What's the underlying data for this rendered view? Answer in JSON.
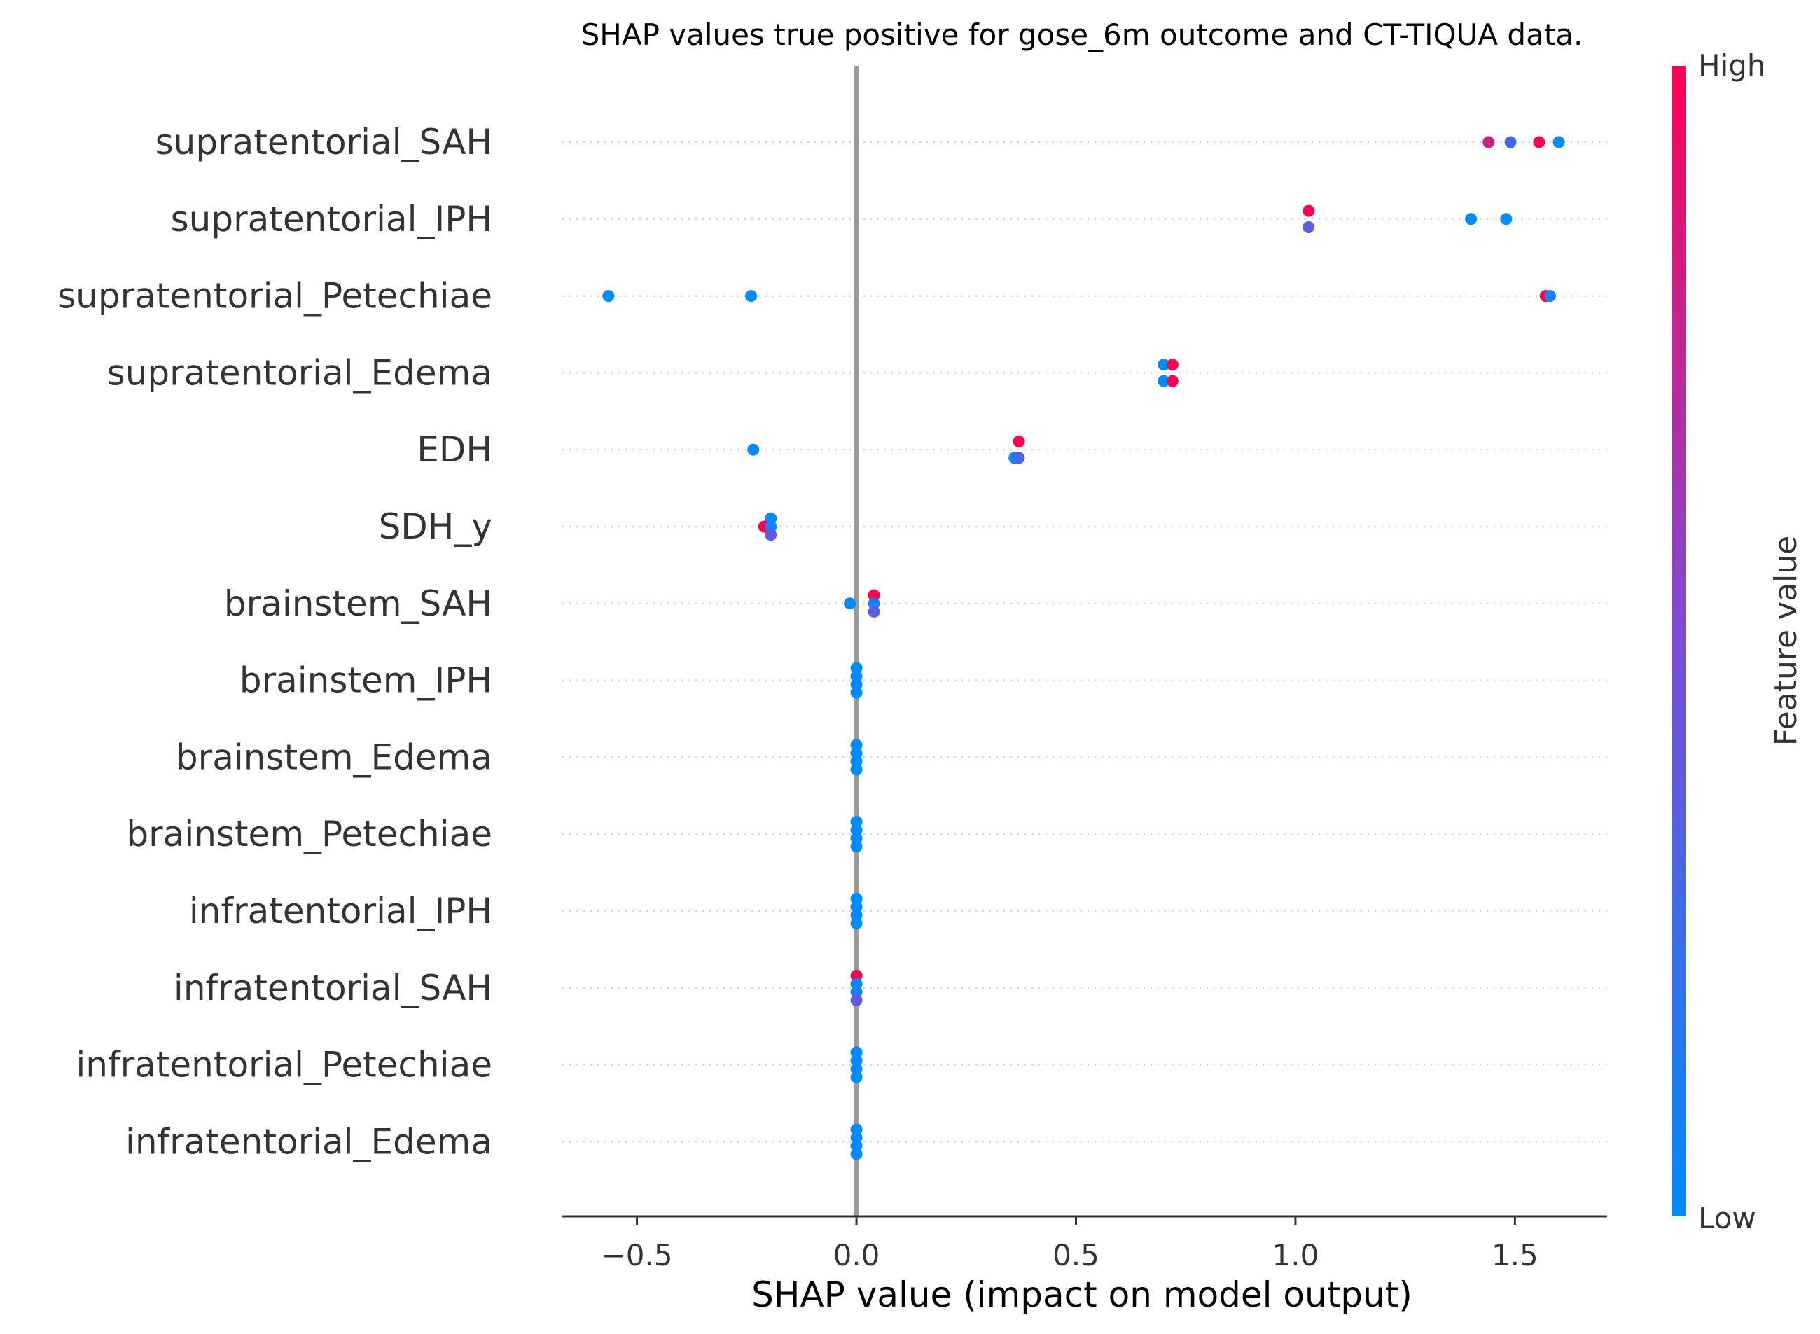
{
  "chart_data": {
    "type": "scatter",
    "title": "SHAP values true positive for gose_6m outcome and CT-TIQUA data.",
    "xlabel": "SHAP value (impact on model output)",
    "ylabel": "",
    "xlim": [
      -0.67,
      1.71
    ],
    "xticks": [
      -0.5,
      0.0,
      0.5,
      1.0,
      1.5
    ],
    "xtick_labels": [
      "−0.5",
      "0.0",
      "0.5",
      "1.0",
      "1.5"
    ],
    "grid": "dotted horizontal row lines",
    "colorbar": {
      "label": "Feature value",
      "high_label": "High",
      "low_label": "Low",
      "placement": "right"
    },
    "colors": {
      "low": "#008bfb",
      "high": "#ff0052",
      "zero_line": "#999999",
      "axis": "#333333",
      "grid": "#cccccc",
      "text": "#333333"
    },
    "features": [
      "supratentorial_SAH",
      "supratentorial_IPH",
      "supratentorial_Petechiae",
      "supratentorial_Edema",
      "EDH",
      "SDH_y",
      "brainstem_SAH",
      "brainstem_IPH",
      "brainstem_Edema",
      "brainstem_Petechiae",
      "infratentorial_IPH",
      "infratentorial_SAH",
      "infratentorial_Petechiae",
      "infratentorial_Edema"
    ],
    "points": [
      [
        [
          1.44,
          0.0,
          0.8
        ],
        [
          1.49,
          0.0,
          0.25
        ],
        [
          1.555,
          0.0,
          1.0
        ],
        [
          1.6,
          0.0,
          0.0
        ]
      ],
      [
        [
          1.03,
          0.18,
          1.0
        ],
        [
          1.03,
          -0.18,
          0.35
        ],
        [
          1.4,
          0.0,
          0.0
        ],
        [
          1.48,
          0.0,
          0.0
        ]
      ],
      [
        [
          -0.565,
          0.0,
          0.0
        ],
        [
          -0.24,
          0.0,
          0.0
        ],
        [
          1.57,
          0.0,
          1.0
        ],
        [
          1.58,
          0.0,
          0.1
        ]
      ],
      [
        [
          0.7,
          0.18,
          0.0
        ],
        [
          0.72,
          0.18,
          1.0
        ],
        [
          0.7,
          -0.18,
          0.0
        ],
        [
          0.72,
          -0.18,
          1.0
        ]
      ],
      [
        [
          -0.235,
          0.0,
          0.0
        ],
        [
          0.37,
          0.18,
          1.0
        ],
        [
          0.36,
          -0.18,
          0.0
        ],
        [
          0.37,
          -0.18,
          0.3
        ]
      ],
      [
        [
          -0.195,
          0.18,
          0.0
        ],
        [
          -0.21,
          0.0,
          1.0
        ],
        [
          -0.195,
          0.0,
          0.05
        ],
        [
          -0.195,
          -0.18,
          0.4
        ]
      ],
      [
        [
          -0.015,
          0.0,
          0.0
        ],
        [
          0.04,
          0.18,
          1.0
        ],
        [
          0.04,
          0.0,
          0.1
        ],
        [
          0.04,
          -0.18,
          0.35
        ]
      ],
      [
        [
          0.0,
          0.27,
          0.0
        ],
        [
          0.0,
          0.09,
          0.0
        ],
        [
          0.0,
          -0.09,
          0.0
        ],
        [
          0.0,
          -0.27,
          0.0
        ]
      ],
      [
        [
          0.0,
          0.27,
          0.0
        ],
        [
          0.0,
          0.09,
          0.0
        ],
        [
          0.0,
          -0.09,
          0.0
        ],
        [
          0.0,
          -0.27,
          0.0
        ]
      ],
      [
        [
          0.0,
          0.27,
          0.0
        ],
        [
          0.0,
          0.09,
          0.0
        ],
        [
          0.0,
          -0.09,
          0.0
        ],
        [
          0.0,
          -0.27,
          0.0
        ]
      ],
      [
        [
          0.0,
          0.27,
          0.0
        ],
        [
          0.0,
          0.09,
          0.0
        ],
        [
          0.0,
          -0.09,
          0.0
        ],
        [
          0.0,
          -0.27,
          0.0
        ]
      ],
      [
        [
          0.0,
          0.27,
          1.0
        ],
        [
          0.0,
          0.09,
          0.05
        ],
        [
          0.0,
          -0.09,
          0.05
        ],
        [
          0.0,
          -0.27,
          0.4
        ]
      ],
      [
        [
          0.0,
          0.27,
          0.0
        ],
        [
          0.0,
          0.09,
          0.0
        ],
        [
          0.0,
          -0.09,
          0.0
        ],
        [
          0.0,
          -0.27,
          0.0
        ]
      ],
      [
        [
          0.0,
          0.27,
          0.0
        ],
        [
          0.0,
          0.09,
          0.0
        ],
        [
          0.0,
          -0.09,
          0.0
        ],
        [
          0.0,
          -0.27,
          0.0
        ]
      ]
    ]
  }
}
